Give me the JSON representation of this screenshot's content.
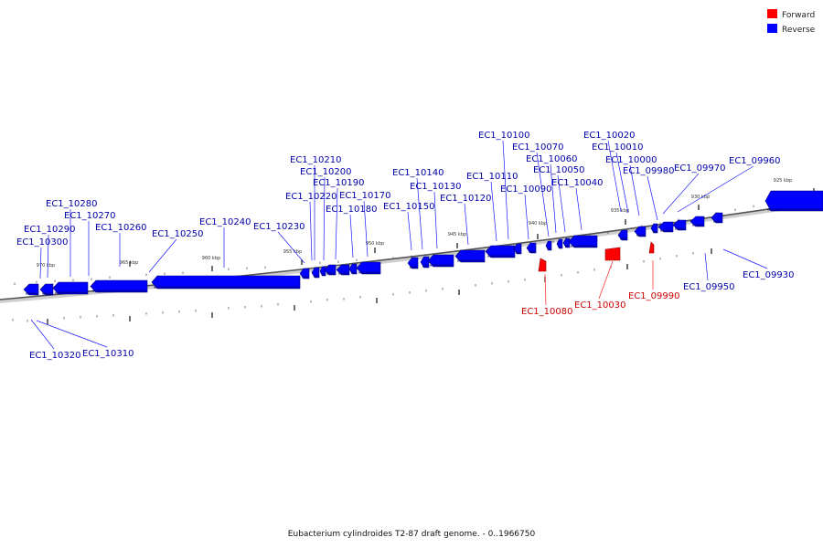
{
  "legend": [
    {
      "label": "Forward",
      "color": "#ff0000"
    },
    {
      "label": "Reverse",
      "color": "#0000ff"
    }
  ],
  "title": "Eubacterium cylindroides T2-87 draft genome. - 0..1966750",
  "scale_labels": [
    "970 kbp",
    "965 kbp",
    "960 kbp",
    "955 kbp",
    "950 kbp",
    "945 kbp",
    "940 kbp",
    "935 kbp",
    "930 kbp",
    "925 kbp"
  ],
  "genes": [
    {
      "label": "EC1_10320",
      "strand": "reverse"
    },
    {
      "label": "EC1_10310",
      "strand": "reverse"
    },
    {
      "label": "EC1_10300",
      "strand": "reverse"
    },
    {
      "label": "EC1_10290",
      "strand": "reverse"
    },
    {
      "label": "EC1_10280",
      "strand": "reverse"
    },
    {
      "label": "EC1_10270",
      "strand": "reverse"
    },
    {
      "label": "EC1_10260",
      "strand": "reverse"
    },
    {
      "label": "EC1_10250",
      "strand": "reverse"
    },
    {
      "label": "EC1_10240",
      "strand": "reverse"
    },
    {
      "label": "EC1_10230",
      "strand": "reverse"
    },
    {
      "label": "EC1_10220",
      "strand": "reverse"
    },
    {
      "label": "EC1_10210",
      "strand": "reverse"
    },
    {
      "label": "EC1_10200",
      "strand": "reverse"
    },
    {
      "label": "EC1_10190",
      "strand": "reverse"
    },
    {
      "label": "EC1_10180",
      "strand": "reverse"
    },
    {
      "label": "EC1_10170",
      "strand": "reverse"
    },
    {
      "label": "EC1_10150",
      "strand": "reverse"
    },
    {
      "label": "EC1_10140",
      "strand": "reverse"
    },
    {
      "label": "EC1_10130",
      "strand": "reverse"
    },
    {
      "label": "EC1_10120",
      "strand": "reverse"
    },
    {
      "label": "EC1_10110",
      "strand": "reverse"
    },
    {
      "label": "EC1_10100",
      "strand": "reverse"
    },
    {
      "label": "EC1_10090",
      "strand": "reverse"
    },
    {
      "label": "EC1_10080",
      "strand": "forward"
    },
    {
      "label": "EC1_10070",
      "strand": "reverse"
    },
    {
      "label": "EC1_10060",
      "strand": "reverse"
    },
    {
      "label": "EC1_10050",
      "strand": "reverse"
    },
    {
      "label": "EC1_10040",
      "strand": "reverse"
    },
    {
      "label": "EC1_10030",
      "strand": "forward"
    },
    {
      "label": "EC1_10020",
      "strand": "reverse"
    },
    {
      "label": "EC1_10010",
      "strand": "reverse"
    },
    {
      "label": "EC1_10000",
      "strand": "reverse"
    },
    {
      "label": "EC1_09990",
      "strand": "forward"
    },
    {
      "label": "EC1_09980",
      "strand": "reverse"
    },
    {
      "label": "EC1_09970",
      "strand": "reverse"
    },
    {
      "label": "EC1_09960",
      "strand": "reverse"
    },
    {
      "label": "EC1_09950",
      "strand": "reverse"
    },
    {
      "label": "EC1_09930",
      "strand": "reverse"
    }
  ]
}
